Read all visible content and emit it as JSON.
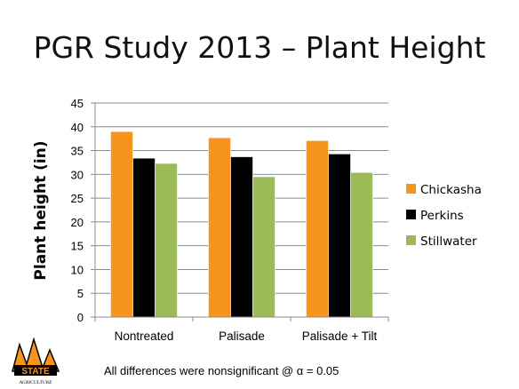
{
  "title": "PGR Study 2013 – Plant Height",
  "footnote": "All differences were nonsignificant @ α = 0.05",
  "logo": {
    "text": "STATE",
    "subtext": "AGRICULTURE",
    "colors": {
      "orange": "#f7941d",
      "black": "#000000"
    }
  },
  "chart_data": {
    "type": "bar",
    "title": "",
    "ylabel": "Plant height (in)",
    "xlabel": "",
    "categories": [
      "Nontreated",
      "Palisade",
      "Palisade + Tilt"
    ],
    "series": [
      {
        "name": "Chickasha",
        "color": "#f7941d",
        "values": [
          39.0,
          37.7,
          37.1
        ]
      },
      {
        "name": "Perkins",
        "color": "#000000",
        "values": [
          33.4,
          33.7,
          34.3
        ]
      },
      {
        "name": "Stillwater",
        "color": "#9bbb59",
        "values": [
          32.3,
          29.5,
          30.4
        ]
      }
    ],
    "ylim": [
      0,
      45
    ],
    "yticks": [
      0,
      5,
      10,
      15,
      20,
      25,
      30,
      35,
      40,
      45
    ],
    "grid": true,
    "legend": "right"
  }
}
